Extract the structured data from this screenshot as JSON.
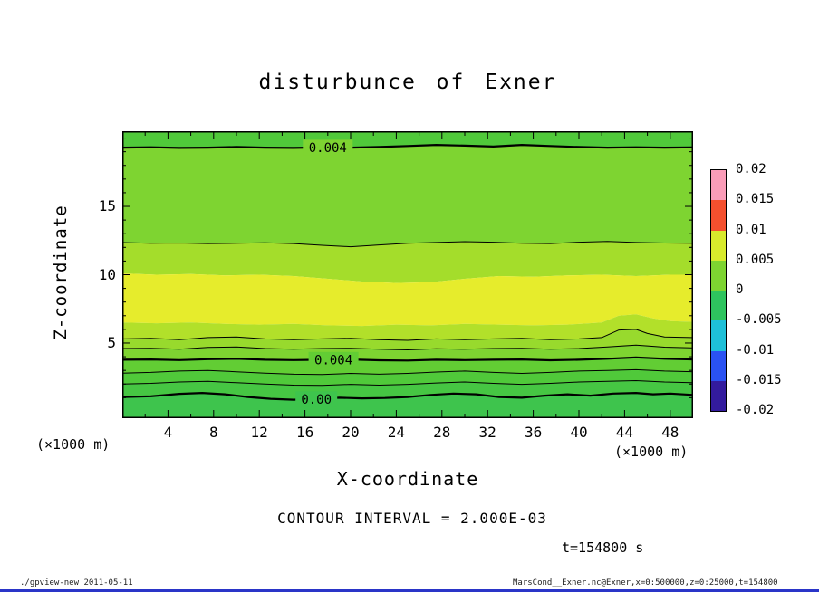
{
  "page": {
    "footer_left": "./gpview-new  2011-05-11",
    "footer_right": "MarsCond__Exner.nc@Exner,x=0:500000,z=0:25000,t=154800",
    "bottom_bar_color": "#2a35c8"
  },
  "chart_data": {
    "type": "heatmap",
    "subtype": "filled-contour",
    "title": "disturbunce of Exner",
    "xlabel": "X-coordinate",
    "ylabel": "Z-coordinate",
    "x_unit": "(×1000 m)",
    "y_unit": "(×1000 m)",
    "contour_interval_text": "CONTOUR INTERVAL = 2.000E-03",
    "time_text": "t=154800 s",
    "grid": false,
    "xlim": [
      0,
      50
    ],
    "ylim": [
      -0.5,
      20.5
    ],
    "x_ticks": [
      4,
      8,
      12,
      16,
      20,
      24,
      28,
      32,
      36,
      40,
      44,
      48
    ],
    "x_minor_step": 2,
    "y_ticks": [
      5,
      10,
      15
    ],
    "y_minor_step": 1,
    "colorbar": {
      "labels": [
        "0.02",
        "0.015",
        "0.01",
        "0.005",
        "0",
        "-0.005",
        "-0.01",
        "-0.015",
        "-0.02"
      ],
      "segment_colors_top_to_bottom": [
        "#fa9cb8",
        "#f4502e",
        "#d8ea2c",
        "#7ed431",
        "#2ec45e",
        "#1ec0d8",
        "#2a52f2",
        "#331b9e"
      ]
    },
    "band_colors_top_to_bottom": [
      "#50c93a",
      "#7ed431",
      "#a4dd2b",
      "#e6ec2c",
      "#b2e02a",
      "#98da2d",
      "#7ed431",
      "#62cd34",
      "#50c93a",
      "#46c643",
      "#3ec44d"
    ],
    "boundaries": [
      {
        "id": "plot-top",
        "points": [
          [
            0,
            20.5
          ],
          [
            50,
            20.5
          ]
        ]
      },
      {
        "id": "contour-0004-upper",
        "line": "thick",
        "label": "0.004",
        "label_x": 18,
        "points": [
          [
            0,
            19.3
          ],
          [
            2.5,
            19.33
          ],
          [
            5,
            19.28
          ],
          [
            7.5,
            19.3
          ],
          [
            10,
            19.35
          ],
          [
            12.5,
            19.3
          ],
          [
            15,
            19.28
          ],
          [
            17.5,
            19.32
          ],
          [
            20,
            19.3
          ],
          [
            22.5,
            19.35
          ],
          [
            25,
            19.42
          ],
          [
            27.5,
            19.5
          ],
          [
            30,
            19.45
          ],
          [
            32.5,
            19.38
          ],
          [
            35,
            19.5
          ],
          [
            37.5,
            19.42
          ],
          [
            40,
            19.35
          ],
          [
            42.5,
            19.3
          ],
          [
            45,
            19.33
          ],
          [
            47.5,
            19.3
          ],
          [
            50,
            19.32
          ]
        ]
      },
      {
        "id": "contour-thin-z12",
        "line": "thin",
        "points": [
          [
            0,
            12.35
          ],
          [
            2.5,
            12.3
          ],
          [
            5,
            12.32
          ],
          [
            7.5,
            12.28
          ],
          [
            10,
            12.3
          ],
          [
            12.5,
            12.34
          ],
          [
            15,
            12.28
          ],
          [
            17.5,
            12.15
          ],
          [
            20,
            12.05
          ],
          [
            22.5,
            12.18
          ],
          [
            25,
            12.3
          ],
          [
            27.5,
            12.36
          ],
          [
            30,
            12.42
          ],
          [
            32.5,
            12.38
          ],
          [
            35,
            12.3
          ],
          [
            37.5,
            12.28
          ],
          [
            40,
            12.38
          ],
          [
            42.5,
            12.44
          ],
          [
            45,
            12.36
          ],
          [
            47.5,
            12.32
          ],
          [
            50,
            12.3
          ]
        ]
      },
      {
        "id": "fill-edge-yellow-top",
        "points": [
          [
            0,
            10.1
          ],
          [
            3,
            10.0
          ],
          [
            6,
            10.05
          ],
          [
            9,
            9.95
          ],
          [
            12,
            10.0
          ],
          [
            15,
            9.9
          ],
          [
            18,
            9.7
          ],
          [
            21,
            9.5
          ],
          [
            24,
            9.4
          ],
          [
            27,
            9.45
          ],
          [
            30,
            9.7
          ],
          [
            33,
            9.9
          ],
          [
            36,
            9.85
          ],
          [
            39,
            9.95
          ],
          [
            42,
            10.0
          ],
          [
            45,
            9.9
          ],
          [
            48,
            10.0
          ],
          [
            50,
            10.0
          ]
        ]
      },
      {
        "id": "fill-edge-yellow-bottom",
        "points": [
          [
            0,
            6.5
          ],
          [
            3,
            6.45
          ],
          [
            6,
            6.5
          ],
          [
            9,
            6.4
          ],
          [
            12,
            6.35
          ],
          [
            15,
            6.4
          ],
          [
            18,
            6.3
          ],
          [
            21,
            6.25
          ],
          [
            24,
            6.35
          ],
          [
            27,
            6.3
          ],
          [
            30,
            6.4
          ],
          [
            33,
            6.35
          ],
          [
            36,
            6.3
          ],
          [
            39,
            6.35
          ],
          [
            42,
            6.5
          ],
          [
            43.5,
            7.0
          ],
          [
            45,
            7.1
          ],
          [
            46.5,
            6.8
          ],
          [
            48,
            6.6
          ],
          [
            50,
            6.55
          ]
        ]
      },
      {
        "id": "contour-thin-z5",
        "line": "thin",
        "points": [
          [
            0,
            5.3
          ],
          [
            2.5,
            5.35
          ],
          [
            5,
            5.25
          ],
          [
            7.5,
            5.4
          ],
          [
            10,
            5.45
          ],
          [
            12.5,
            5.3
          ],
          [
            15,
            5.25
          ],
          [
            17.5,
            5.3
          ],
          [
            20,
            5.35
          ],
          [
            22.5,
            5.25
          ],
          [
            25,
            5.2
          ],
          [
            27.5,
            5.3
          ],
          [
            30,
            5.25
          ],
          [
            32.5,
            5.3
          ],
          [
            35,
            5.35
          ],
          [
            37.5,
            5.25
          ],
          [
            40,
            5.3
          ],
          [
            42,
            5.4
          ],
          [
            43.5,
            5.95
          ],
          [
            45,
            6.0
          ],
          [
            46,
            5.7
          ],
          [
            47.5,
            5.45
          ],
          [
            50,
            5.4
          ]
        ]
      },
      {
        "id": "contour-thin-z45",
        "line": "thin",
        "points": [
          [
            0,
            4.6
          ],
          [
            2.5,
            4.62
          ],
          [
            5,
            4.55
          ],
          [
            7.5,
            4.68
          ],
          [
            10,
            4.72
          ],
          [
            12.5,
            4.6
          ],
          [
            15,
            4.55
          ],
          [
            17.5,
            4.6
          ],
          [
            20,
            4.62
          ],
          [
            22.5,
            4.55
          ],
          [
            25,
            4.5
          ],
          [
            27.5,
            4.58
          ],
          [
            30,
            4.55
          ],
          [
            32.5,
            4.6
          ],
          [
            35,
            4.62
          ],
          [
            37.5,
            4.55
          ],
          [
            40,
            4.6
          ],
          [
            42.5,
            4.72
          ],
          [
            45,
            4.85
          ],
          [
            47.5,
            4.7
          ],
          [
            50,
            4.65
          ]
        ]
      },
      {
        "id": "contour-0004-lower",
        "line": "thick",
        "label": "0.004",
        "label_x": 18.5,
        "points": [
          [
            0,
            3.78
          ],
          [
            2.5,
            3.8
          ],
          [
            5,
            3.75
          ],
          [
            7.5,
            3.82
          ],
          [
            10,
            3.85
          ],
          [
            12.5,
            3.78
          ],
          [
            15,
            3.75
          ],
          [
            17.5,
            3.78
          ],
          [
            20,
            3.8
          ],
          [
            22.5,
            3.74
          ],
          [
            25,
            3.72
          ],
          [
            27.5,
            3.78
          ],
          [
            30,
            3.75
          ],
          [
            32.5,
            3.78
          ],
          [
            35,
            3.8
          ],
          [
            37.5,
            3.74
          ],
          [
            40,
            3.78
          ],
          [
            42.5,
            3.85
          ],
          [
            45,
            3.95
          ],
          [
            47.5,
            3.85
          ],
          [
            50,
            3.8
          ]
        ]
      },
      {
        "id": "contour-thin-z28",
        "line": "thin",
        "points": [
          [
            0,
            2.8
          ],
          [
            2.5,
            2.85
          ],
          [
            5,
            2.95
          ],
          [
            7.5,
            3.0
          ],
          [
            10,
            2.9
          ],
          [
            12.5,
            2.8
          ],
          [
            15,
            2.72
          ],
          [
            17.5,
            2.7
          ],
          [
            20,
            2.78
          ],
          [
            22.5,
            2.72
          ],
          [
            25,
            2.78
          ],
          [
            27.5,
            2.88
          ],
          [
            30,
            2.95
          ],
          [
            32.5,
            2.85
          ],
          [
            35,
            2.78
          ],
          [
            37.5,
            2.85
          ],
          [
            40,
            2.95
          ],
          [
            42.5,
            3.0
          ],
          [
            45,
            3.05
          ],
          [
            47.5,
            2.95
          ],
          [
            50,
            2.9
          ]
        ]
      },
      {
        "id": "contour-thin-z2",
        "line": "thin",
        "points": [
          [
            0,
            2.0
          ],
          [
            2.5,
            2.05
          ],
          [
            5,
            2.15
          ],
          [
            7.5,
            2.2
          ],
          [
            10,
            2.1
          ],
          [
            12.5,
            2.0
          ],
          [
            15,
            1.92
          ],
          [
            17.5,
            1.9
          ],
          [
            20,
            1.98
          ],
          [
            22.5,
            1.92
          ],
          [
            25,
            1.98
          ],
          [
            27.5,
            2.08
          ],
          [
            30,
            2.15
          ],
          [
            32.5,
            2.05
          ],
          [
            35,
            1.98
          ],
          [
            37.5,
            2.05
          ],
          [
            40,
            2.15
          ],
          [
            42.5,
            2.2
          ],
          [
            45,
            2.25
          ],
          [
            47.5,
            2.15
          ],
          [
            50,
            2.1
          ]
        ]
      },
      {
        "id": "contour-000",
        "line": "thick",
        "label": "0.00",
        "label_x": 17,
        "points": [
          [
            0,
            1.05
          ],
          [
            2.5,
            1.1
          ],
          [
            5,
            1.28
          ],
          [
            7,
            1.35
          ],
          [
            9,
            1.25
          ],
          [
            11,
            1.05
          ],
          [
            13,
            0.92
          ],
          [
            15,
            0.85
          ],
          [
            17,
            0.9
          ],
          [
            19,
            1.0
          ],
          [
            21,
            0.95
          ],
          [
            23,
            0.98
          ],
          [
            25,
            1.05
          ],
          [
            27,
            1.2
          ],
          [
            29,
            1.3
          ],
          [
            31,
            1.25
          ],
          [
            33,
            1.05
          ],
          [
            35,
            1.0
          ],
          [
            37,
            1.15
          ],
          [
            39,
            1.25
          ],
          [
            41,
            1.15
          ],
          [
            43,
            1.3
          ],
          [
            45,
            1.35
          ],
          [
            46.5,
            1.25
          ],
          [
            48,
            1.3
          ],
          [
            50,
            1.2
          ]
        ]
      },
      {
        "id": "plot-bottom",
        "points": [
          [
            0,
            -0.5
          ],
          [
            50,
            -0.5
          ]
        ]
      }
    ]
  }
}
